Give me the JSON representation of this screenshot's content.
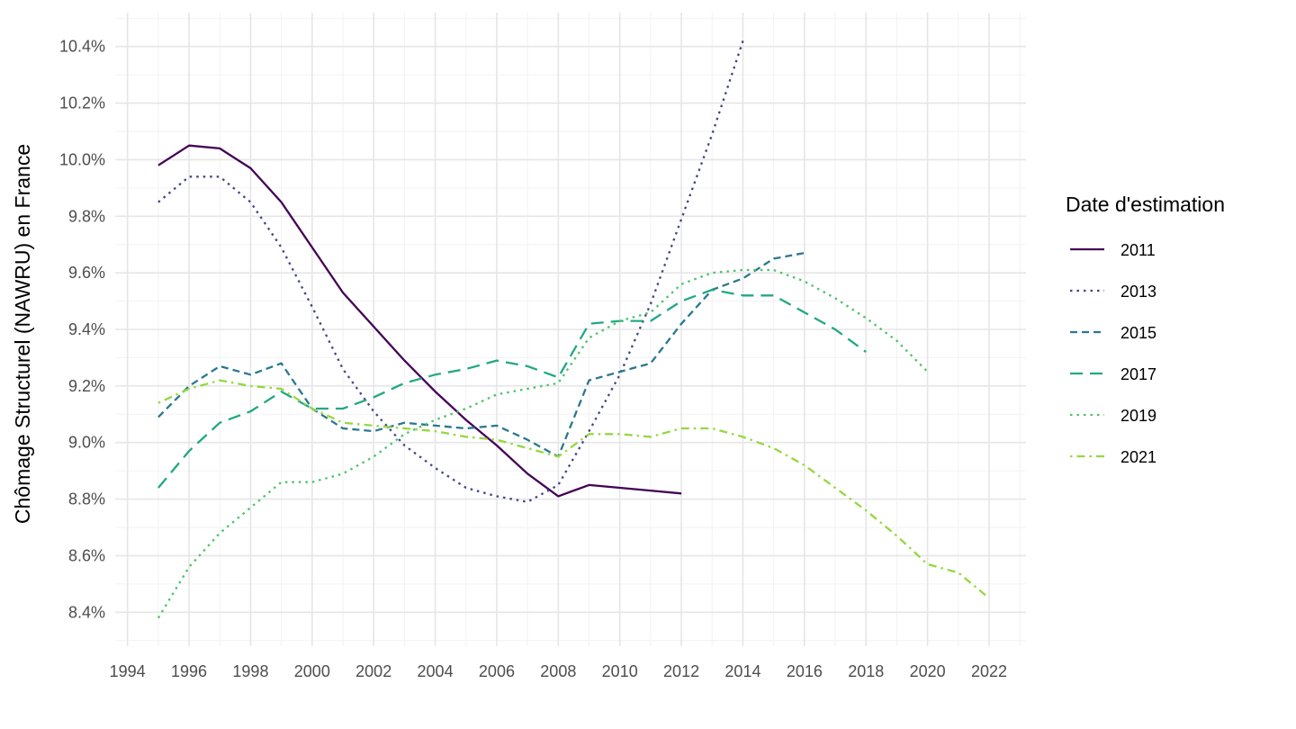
{
  "chart_data": {
    "type": "line",
    "title": "",
    "xlabel": "",
    "ylabel": "Chômage Structurel (NAWRU) en France",
    "xlim": [
      1993.6,
      2023.2
    ],
    "ylim": [
      8.28,
      10.52
    ],
    "x_ticks": [
      "1994",
      "1996",
      "1998",
      "2000",
      "2002",
      "2004",
      "2006",
      "2008",
      "2010",
      "2012",
      "2014",
      "2016",
      "2018",
      "2020",
      "2022"
    ],
    "y_ticks": [
      "8.4%",
      "8.6%",
      "8.8%",
      "9.0%",
      "9.2%",
      "9.4%",
      "9.6%",
      "9.8%",
      "10.0%",
      "10.2%",
      "10.4%"
    ],
    "grid": true,
    "legend": {
      "title": "Date d'estimation",
      "position": "right"
    },
    "series": [
      {
        "name": "2011",
        "color": "#440154",
        "dash": "solid",
        "x": [
          1995,
          1996,
          1997,
          1998,
          1999,
          2000,
          2001,
          2002,
          2003,
          2004,
          2005,
          2006,
          2007,
          2008,
          2009,
          2010,
          2011,
          2012
        ],
        "values": [
          9.98,
          10.05,
          10.04,
          9.97,
          9.85,
          9.69,
          9.53,
          9.41,
          9.29,
          9.18,
          9.08,
          8.99,
          8.89,
          8.81,
          8.85,
          8.84,
          8.83,
          8.82
        ]
      },
      {
        "name": "2013",
        "color": "#414487",
        "dash": "dotted",
        "x": [
          1995,
          1996,
          1997,
          1998,
          1999,
          2000,
          2001,
          2002,
          2003,
          2004,
          2005,
          2006,
          2007,
          2008,
          2009,
          2010,
          2011,
          2012,
          2013,
          2014
        ],
        "values": [
          9.85,
          9.94,
          9.94,
          9.85,
          9.69,
          9.48,
          9.26,
          9.11,
          8.99,
          8.91,
          8.84,
          8.81,
          8.79,
          8.85,
          9.04,
          9.24,
          9.49,
          9.79,
          10.09,
          10.42
        ]
      },
      {
        "name": "2015",
        "color": "#2A788E",
        "dash": "dashed",
        "x": [
          1995,
          1996,
          1997,
          1998,
          1999,
          2000,
          2001,
          2002,
          2003,
          2004,
          2005,
          2006,
          2007,
          2008,
          2009,
          2010,
          2011,
          2012,
          2013,
          2014,
          2015,
          2016
        ],
        "values": [
          9.09,
          9.2,
          9.27,
          9.24,
          9.28,
          9.12,
          9.05,
          9.04,
          9.07,
          9.06,
          9.05,
          9.06,
          9.01,
          8.95,
          9.22,
          9.25,
          9.28,
          9.42,
          9.54,
          9.58,
          9.65,
          9.67
        ]
      },
      {
        "name": "2017",
        "color": "#22A884",
        "dash": "longdash",
        "x": [
          1995,
          1996,
          1997,
          1998,
          1999,
          2000,
          2001,
          2002,
          2003,
          2004,
          2005,
          2006,
          2007,
          2008,
          2009,
          2010,
          2011,
          2012,
          2013,
          2014,
          2015,
          2016,
          2017,
          2018
        ],
        "values": [
          8.84,
          8.97,
          9.07,
          9.11,
          9.18,
          9.12,
          9.12,
          9.16,
          9.21,
          9.24,
          9.26,
          9.29,
          9.27,
          9.23,
          9.42,
          9.43,
          9.43,
          9.5,
          9.54,
          9.52,
          9.52,
          9.46,
          9.4,
          9.32
        ]
      },
      {
        "name": "2019",
        "color": "#4CC26C",
        "dash": "dotted",
        "x": [
          1995,
          1996,
          1997,
          1998,
          1999,
          2000,
          2001,
          2002,
          2003,
          2004,
          2005,
          2006,
          2007,
          2008,
          2009,
          2010,
          2011,
          2012,
          2013,
          2014,
          2015,
          2016,
          2017,
          2018,
          2019,
          2020
        ],
        "values": [
          8.38,
          8.56,
          8.68,
          8.77,
          8.86,
          8.86,
          8.89,
          8.95,
          9.03,
          9.08,
          9.12,
          9.17,
          9.19,
          9.21,
          9.37,
          9.43,
          9.46,
          9.56,
          9.6,
          9.61,
          9.61,
          9.57,
          9.51,
          9.44,
          9.36,
          9.25
        ]
      },
      {
        "name": "2021",
        "color": "#94D840",
        "dash": "dotdash",
        "x": [
          1995,
          1996,
          1997,
          1998,
          1999,
          2000,
          2001,
          2002,
          2003,
          2004,
          2005,
          2006,
          2007,
          2008,
          2009,
          2010,
          2011,
          2012,
          2013,
          2014,
          2015,
          2016,
          2017,
          2018,
          2019,
          2020,
          2021,
          2022
        ],
        "values": [
          9.14,
          9.19,
          9.22,
          9.2,
          9.19,
          9.12,
          9.07,
          9.06,
          9.05,
          9.04,
          9.02,
          9.01,
          8.98,
          8.95,
          9.03,
          9.03,
          9.02,
          9.05,
          9.05,
          9.02,
          8.98,
          8.92,
          8.84,
          8.76,
          8.67,
          8.57,
          8.54,
          8.45
        ]
      }
    ]
  }
}
